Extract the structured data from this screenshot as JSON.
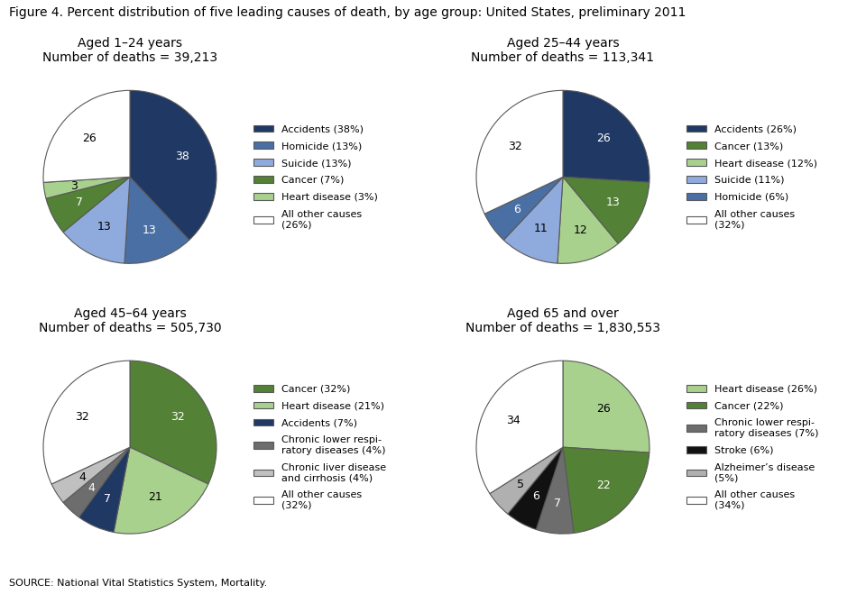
{
  "title": "Figure 4. Percent distribution of five leading causes of death, by age group: United States, preliminary 2011",
  "annotations": [
    "SOURCE: National Vital Statistics System, Mortality."
  ],
  "chart_data": [
    {
      "type": "pie",
      "title": "Aged 1–24 years\nNumber of deaths = 39,213",
      "categories": [
        "Accidents (38%)",
        "Homicide (13%)",
        "Suicide (13%)",
        "Cancer (7%)",
        "Heart disease (3%)",
        "All other causes\n(26%)"
      ],
      "values": [
        38,
        13,
        13,
        7,
        3,
        26
      ],
      "colors": [
        "#1f3864",
        "#4a6fa5",
        "#8faadc",
        "#538135",
        "#a9d18e",
        "#ffffff"
      ],
      "data_labels": true,
      "legend": "center left"
    },
    {
      "type": "pie",
      "title": "Aged 25–44 years\nNumber of deaths = 113,341",
      "categories": [
        "Accidents (26%)",
        "Cancer (13%)",
        "Heart disease (12%)",
        "Suicide (11%)",
        "Homicide (6%)",
        "All other causes\n(32%)"
      ],
      "values": [
        26,
        13,
        12,
        11,
        6,
        32
      ],
      "colors": [
        "#1f3864",
        "#538135",
        "#a9d18e",
        "#8faadc",
        "#4a6fa5",
        "#ffffff"
      ],
      "data_labels": true,
      "legend": "center left"
    },
    {
      "type": "pie",
      "title": "Aged 45–64 years\nNumber of deaths = 505,730",
      "categories": [
        "Cancer (32%)",
        "Heart disease (21%)",
        "Accidents (7%)",
        "Chronic lower respi-\nratory diseases (4%)",
        "Chronic liver disease\nand cirrhosis (4%)",
        "All other causes\n(32%)"
      ],
      "values": [
        32,
        21,
        7,
        4,
        4,
        32
      ],
      "colors": [
        "#538135",
        "#a9d18e",
        "#1f3864",
        "#6d6d6d",
        "#c0c0c0",
        "#ffffff"
      ],
      "data_labels": true,
      "legend": "center left"
    },
    {
      "type": "pie",
      "title": "Aged 65 and over\nNumber of deaths = 1,830,553",
      "categories": [
        "Heart disease (26%)",
        "Cancer (22%)",
        "Chronic lower respi-\nratory diseases (7%)",
        "Stroke (6%)",
        "Alzheimer’s disease\n(5%)",
        "All other causes\n(34%)"
      ],
      "values": [
        26,
        22,
        7,
        6,
        5,
        34
      ],
      "colors": [
        "#a9d18e",
        "#538135",
        "#6d6d6d",
        "#111111",
        "#b0b0b0",
        "#ffffff"
      ],
      "data_labels": true,
      "legend": "center left"
    }
  ]
}
